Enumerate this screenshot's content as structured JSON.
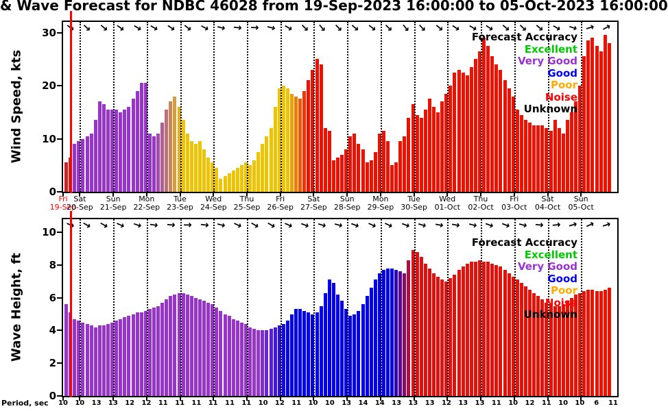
{
  "title": "& Wave Forecast for NDBC 46028 from 19-Sep-2023 16:00:00 to 05-Oct-2023 16:00:00",
  "now_color": "#ff0000",
  "axis": {
    "span_hours": 398,
    "tick_hours": [
      0,
      12,
      36,
      60,
      84,
      108,
      132,
      156,
      180,
      204,
      228,
      252,
      276,
      300,
      324,
      348,
      372
    ],
    "bar_start_hour": 1,
    "bar_step_hours": 3,
    "now_hour": 5.5
  },
  "x_axis": {
    "day_names": [
      "Fri",
      "Sat",
      "Sun",
      "Mon",
      "Tue",
      "Wed",
      "Thu",
      "Fri",
      "Sat",
      "Sun",
      "Mon",
      "Tue",
      "Wed",
      "Thu",
      "Fri",
      "Sat",
      "Sun"
    ],
    "dates": [
      "19-Sep",
      "20-Sep",
      "21-Sep",
      "22-Sep",
      "23-Sep",
      "24-Sep",
      "25-Sep",
      "26-Sep",
      "27-Sep",
      "28-Sep",
      "29-Sep",
      "30-Sep",
      "01-Oct",
      "02-Oct",
      "03-Oct",
      "04-Oct",
      "05-Oct"
    ]
  },
  "legend": {
    "title": "Forecast Accuracy",
    "entries": [
      {
        "label": "Excellent",
        "color": "#00cc00"
      },
      {
        "label": "Very Good",
        "color": "#9933cc"
      },
      {
        "label": "Good",
        "color": "#0000ee"
      },
      {
        "label": "Poor",
        "color": "#ffaa00"
      },
      {
        "label": "Noise",
        "color": "#ff0000"
      },
      {
        "label": "Unknown",
        "color": "#000000"
      }
    ]
  },
  "chart_data": [
    {
      "type": "bar",
      "name": "wind-speed",
      "ylabel": "Wind Speed, kts",
      "ylim": [
        0,
        32
      ],
      "yticks": [
        0,
        10,
        20,
        30
      ],
      "grid": "vertical-dotted",
      "legend_position": "upper-right",
      "values": [
        5.5,
        6.5,
        9,
        9.5,
        10,
        10.5,
        11,
        13.5,
        17,
        16.5,
        15.5,
        15.5,
        15.5,
        15,
        15.5,
        16,
        17.5,
        19,
        20.5,
        20.5,
        11,
        10.5,
        11,
        13,
        15.5,
        17,
        18,
        16,
        13.5,
        11,
        9.5,
        9,
        9.5,
        8,
        6.5,
        5.5,
        4.5,
        2.5,
        3,
        3.5,
        4,
        4.5,
        5,
        5.5,
        5,
        6,
        7.5,
        9,
        10.5,
        12,
        16,
        19.5,
        20,
        19.5,
        18.5,
        18,
        17.5,
        19,
        21,
        23,
        25,
        24,
        12,
        11.5,
        6,
        6.5,
        7,
        8,
        10.5,
        11,
        9,
        8,
        5.5,
        6,
        7.5,
        11,
        11.5,
        9.5,
        5,
        5.5,
        9.5,
        10.5,
        14,
        16.5,
        14.5,
        14,
        15.5,
        17.5,
        16,
        15,
        17,
        18.5,
        20,
        22.5,
        23,
        22.5,
        22,
        23.5,
        25,
        26.5,
        29,
        27.5,
        25.5,
        24,
        23,
        21,
        19.5,
        18,
        15.5,
        14.5,
        13.5,
        13,
        12.5,
        12.5,
        12.5,
        12,
        11.5,
        13.5,
        12,
        11,
        13.5,
        15,
        17,
        20,
        25.5,
        28.5,
        29,
        27.5,
        26.5,
        29.5,
        28
      ],
      "color_stops": [
        [
          0,
          "#cc2222"
        ],
        [
          1,
          "#cc2222"
        ],
        [
          2,
          "#9933cc"
        ],
        [
          21,
          "#9933cc"
        ],
        [
          28,
          "#eec400"
        ],
        [
          53,
          "#eec400"
        ],
        [
          58,
          "#ee1100"
        ],
        [
          130,
          "#ee1100"
        ]
      ],
      "arrows": [
        38,
        42,
        40,
        36,
        32,
        30,
        34,
        38,
        28,
        14,
        6,
        2,
        14,
        30,
        44,
        50,
        46,
        40,
        38,
        44,
        50,
        46,
        40,
        34,
        30,
        34,
        40,
        44,
        40,
        30,
        18,
        -18,
        -28
      ],
      "legend_top": 14,
      "now_overhang": 14
    },
    {
      "type": "bar",
      "name": "wave-height",
      "ylabel": "Wave Height, ft",
      "ylim": [
        0,
        10.8
      ],
      "yticks": [
        0,
        2,
        4,
        6,
        8,
        10
      ],
      "grid": "vertical-dotted",
      "legend_position": "upper-right",
      "values": [
        5.6,
        5.1,
        4.7,
        4.6,
        4.5,
        4.4,
        4.3,
        4.2,
        4.3,
        4.3,
        4.4,
        4.5,
        4.6,
        4.7,
        4.8,
        4.9,
        5,
        5.1,
        5.1,
        5.2,
        5.3,
        5.4,
        5.5,
        5.7,
        5.9,
        6.1,
        6.2,
        6.3,
        6.3,
        6.2,
        6.1,
        6,
        5.9,
        5.8,
        5.7,
        5.6,
        5.4,
        5.2,
        5,
        4.9,
        4.7,
        4.6,
        4.5,
        4.4,
        4.2,
        4.1,
        4,
        4,
        4,
        4.1,
        4.2,
        4.3,
        4.4,
        4.6,
        5,
        5.3,
        5.3,
        5.2,
        5.1,
        5,
        5.1,
        5.5,
        6.3,
        7.1,
        6.9,
        6.2,
        5.8,
        5.3,
        4.9,
        5,
        5.2,
        5.6,
        6.1,
        6.6,
        7.1,
        7.5,
        7.7,
        7.8,
        7.8,
        7.7,
        7.6,
        7.5,
        8.3,
        8.9,
        8.8,
        8.5,
        8.1,
        7.8,
        7.5,
        7.3,
        7.1,
        7,
        7.2,
        7.4,
        7.7,
        7.9,
        8.1,
        8.2,
        8.2,
        8.3,
        8.2,
        8.2,
        8.1,
        8,
        7.9,
        7.7,
        7.5,
        7.3,
        7.1,
        6.9,
        6.7,
        6.5,
        6.3,
        6.1,
        5.9,
        5.7,
        5.6,
        5.5,
        5.5,
        5.6,
        5.8,
        6,
        6.2,
        6.3,
        6.4,
        6.5,
        6.5,
        6.4,
        6.4,
        6.5,
        6.6
      ],
      "color_stops": [
        [
          0,
          "#9933cc"
        ],
        [
          46,
          "#9933cc"
        ],
        [
          53,
          "#0000ee"
        ],
        [
          78,
          "#0000ee"
        ],
        [
          83,
          "#dd1111"
        ],
        [
          130,
          "#ee1100"
        ]
      ],
      "arrows": [
        24,
        30,
        30,
        24,
        18,
        8,
        4,
        0,
        6,
        14,
        24,
        30,
        30,
        24,
        20,
        16,
        14,
        20,
        24,
        26,
        20,
        16,
        10,
        10,
        14,
        20,
        20,
        14,
        4,
        -6,
        -16,
        -24,
        -18
      ],
      "legend_top": 26,
      "now_overhang": 10
    }
  ],
  "period_row": {
    "label": "Period, sec",
    "values": [
      10,
      10,
      13,
      13,
      12,
      12,
      11,
      11,
      11,
      11,
      11,
      11,
      10,
      12,
      11,
      10,
      10,
      13,
      14,
      14,
      13,
      13,
      13,
      12,
      13,
      13,
      11,
      10,
      12,
      11,
      10,
      10,
      6,
      11
    ]
  }
}
